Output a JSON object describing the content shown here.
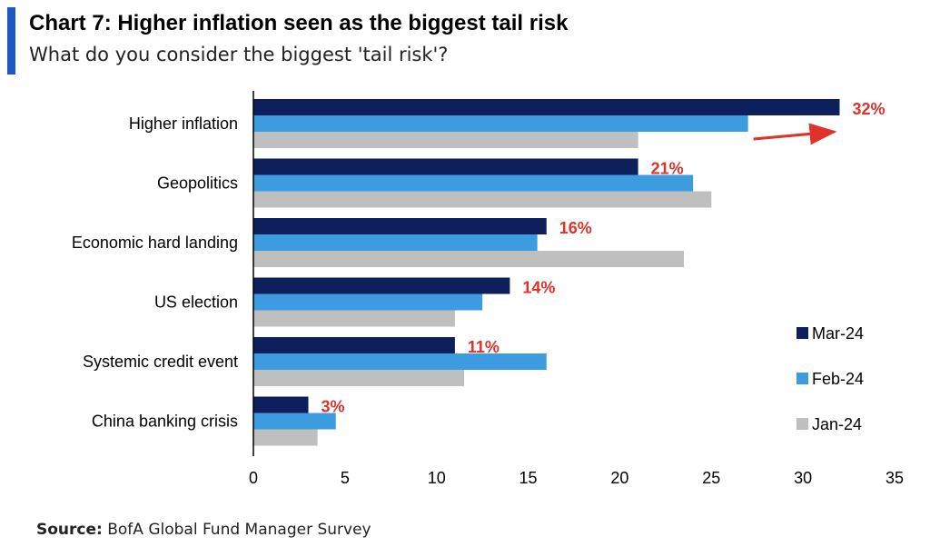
{
  "header": {
    "title": "Chart 7: Higher inflation seen as the biggest tail risk",
    "subtitle": "What do you consider the biggest 'tail risk'?"
  },
  "footer": {
    "source_label": "Source:",
    "source_text": " BofA Global Fund Manager Survey"
  },
  "colors": {
    "accent": "#1f57c3",
    "mar": "#0d1f5c",
    "feb": "#3d9be0",
    "jan": "#bfbfbf",
    "annotation": "#e0312b"
  },
  "chart_data": {
    "type": "bar",
    "orientation": "horizontal",
    "title": "Chart 7: Higher inflation seen as the biggest tail risk",
    "subtitle": "What do you consider the biggest 'tail risk'?",
    "categories": [
      "Higher inflation",
      "Geopolitics",
      "Economic hard landing",
      "US election",
      "Systemic credit event",
      "China banking crisis"
    ],
    "series": [
      {
        "name": "Mar-24",
        "values": [
          32,
          21,
          16,
          14,
          11,
          3
        ],
        "color": "#0d1f5c"
      },
      {
        "name": "Feb-24",
        "values": [
          27,
          24,
          15.5,
          12.5,
          16,
          4.5
        ],
        "color": "#3d9be0"
      },
      {
        "name": "Jan-24",
        "values": [
          21,
          25,
          23.5,
          11,
          11.5,
          3.5
        ],
        "color": "#bfbfbf"
      }
    ],
    "data_labels": [
      "32%",
      "21%",
      "16%",
      "14%",
      "11%",
      "3%"
    ],
    "xlim": [
      0,
      35
    ],
    "xticks": [
      0,
      5,
      10,
      15,
      20,
      25,
      30,
      35
    ],
    "legend_position": "right",
    "grid": false,
    "annotations": [
      {
        "type": "arrow",
        "category": "Higher inflation",
        "from_value": 27,
        "to_value": 32
      }
    ]
  }
}
